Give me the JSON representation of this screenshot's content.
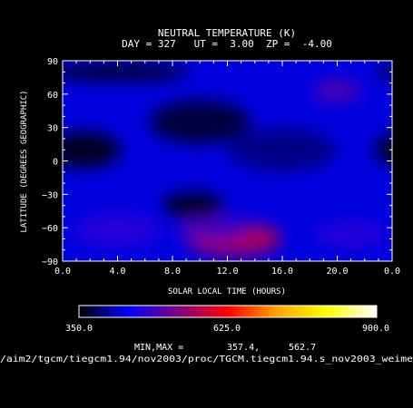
{
  "chart_data": {
    "type": "heatmap",
    "title": "NEUTRAL TEMPERATURE (K)",
    "subtitle": "DAY = 327   UT =  3.00  ZP =  -4.00",
    "xlabel": "SOLAR LOCAL TIME (HOURS)",
    "ylabel": "LATITUDE (DEGREES GEOGRAPHIC)",
    "x_ticks": [
      "0.0",
      "4.0",
      "8.0",
      "12.0",
      "16.0",
      "20.0",
      "0.0"
    ],
    "y_ticks": [
      "90",
      "60",
      "30",
      "0",
      "−30",
      "−60",
      "−90"
    ],
    "xlim": [
      0,
      24
    ],
    "ylim": [
      -90,
      90
    ],
    "colorbar": {
      "min_label": "350.0",
      "mid_label": "625.0",
      "max_label": "900.0",
      "range": [
        350,
        900
      ],
      "colors": [
        "#000000",
        "#0000ff",
        "#800080",
        "#ff0000",
        "#ffa500",
        "#ffff00",
        "#ffffff"
      ]
    },
    "minmax_label": "MIN,MAX =",
    "min_value": "357.4,",
    "max_value": "562.7",
    "source_path": "/aim2/tgcm/tiegcm1.94/nov2003/proc/TGCM.tiegcm1.94.s_nov2003_weime",
    "field": {
      "background": 430,
      "features": [
        {
          "lt": 12.5,
          "lat": -70,
          "value": 562
        },
        {
          "lt": 11.0,
          "lat": -60,
          "value": 490
        },
        {
          "lt": 4.0,
          "lat": -62,
          "value": 470
        },
        {
          "lt": 21.0,
          "lat": -66,
          "value": 470
        },
        {
          "lt": 20.0,
          "lat": 63,
          "value": 500
        },
        {
          "lt": 9.5,
          "lat": -40,
          "value": 360
        },
        {
          "lt": 1.5,
          "lat": 10,
          "value": 362
        },
        {
          "lt": 10.0,
          "lat": 35,
          "value": 372
        },
        {
          "lt": 4.0,
          "lat": 80,
          "value": 368
        },
        {
          "lt": 16.0,
          "lat": 10,
          "value": 398
        }
      ]
    }
  }
}
